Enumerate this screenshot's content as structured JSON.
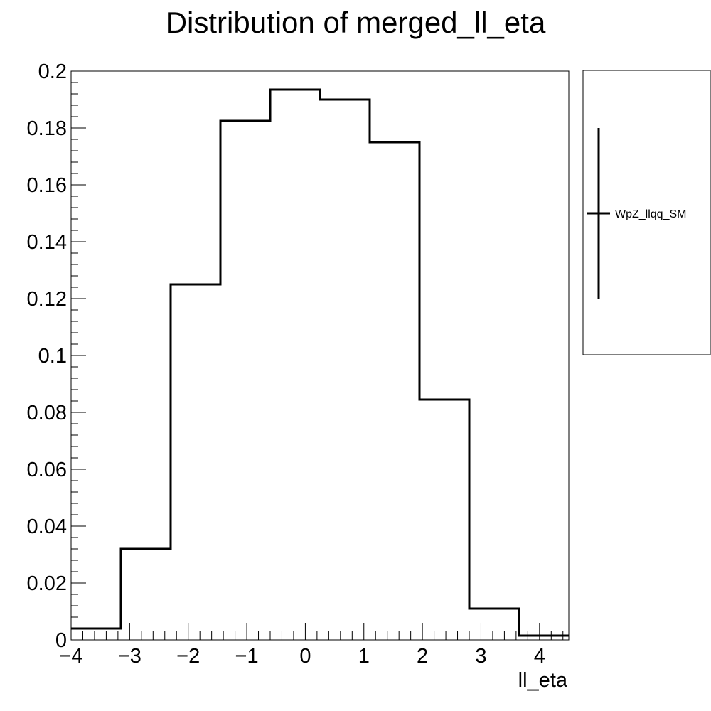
{
  "chart_data": {
    "type": "histogram",
    "title": "Distribution of merged_ll_eta",
    "xlabel": "ll_eta",
    "ylabel": "",
    "xlim": [
      -4,
      4.5
    ],
    "ylim": [
      0,
      0.2
    ],
    "x_ticks": [
      -4,
      -3,
      -2,
      -1,
      0,
      1,
      2,
      3,
      4
    ],
    "x_tick_labels": [
      "−4",
      "−3",
      "−2",
      "−1",
      "0",
      "1",
      "2",
      "3",
      "4"
    ],
    "y_ticks": [
      0,
      0.02,
      0.04,
      0.06,
      0.08,
      0.1,
      0.12,
      0.14,
      0.16,
      0.18,
      0.2
    ],
    "y_tick_labels": [
      "0",
      "0.02",
      "0.04",
      "0.06",
      "0.08",
      "0.1",
      "0.12",
      "0.14",
      "0.16",
      "0.18",
      "0.2"
    ],
    "bin_edges": [
      -4,
      -3.15,
      -2.3,
      -1.45,
      -0.6,
      0.25,
      1.1,
      1.95,
      2.8,
      3.65,
      4.5
    ],
    "series": [
      {
        "name": "WpZ_llqq_SM",
        "values": [
          0.004,
          0.032,
          0.125,
          0.1825,
          0.1935,
          0.19,
          0.175,
          0.0845,
          0.011,
          0.0015
        ],
        "color": "#000000"
      }
    ],
    "legend_position": "right",
    "grid": false
  }
}
